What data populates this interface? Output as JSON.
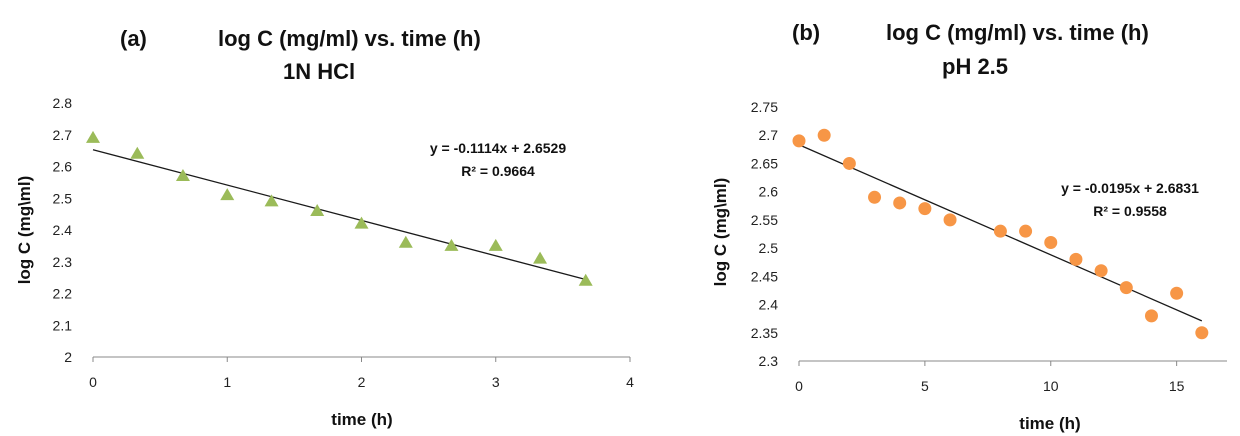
{
  "chart_data": [
    {
      "type": "scatter",
      "panel_label": "(a)",
      "title": "log C (mg/ml) vs. time (h)",
      "subtitle": "1N HCl",
      "xlabel": "time (h)",
      "ylabel": "log C (mg\\ml)",
      "xlim": [
        0,
        4
      ],
      "ylim": [
        2,
        2.8
      ],
      "xticks": [
        0,
        1,
        2,
        3,
        4
      ],
      "yticks": [
        2,
        2.1,
        2.2,
        2.3,
        2.4,
        2.5,
        2.6,
        2.7,
        2.8
      ],
      "marker": "triangle",
      "marker_color": "#9bbb59",
      "grid": false,
      "series": [
        {
          "x": [
            0,
            0.33,
            0.67,
            1.0,
            1.33,
            1.67,
            2.0,
            2.33,
            2.67,
            3.0,
            3.33,
            3.67
          ],
          "y": [
            2.69,
            2.64,
            2.57,
            2.51,
            2.49,
            2.46,
            2.42,
            2.36,
            2.35,
            2.35,
            2.31,
            2.24
          ]
        }
      ],
      "trendline": {
        "slope": -0.1114,
        "intercept": 2.6529,
        "x_range": [
          0,
          3.67
        ]
      },
      "annotation": {
        "equation": "y = -0.1114x + 2.6529",
        "r2": "R² = 0.9664"
      }
    },
    {
      "type": "scatter",
      "panel_label": "(b)",
      "title": "log C (mg/ml) vs. time (h)",
      "subtitle": "pH 2.5",
      "xlabel": "time (h)",
      "ylabel": "log C (mg\\ml)",
      "xlim": [
        0,
        17
      ],
      "ylim": [
        2.3,
        2.75
      ],
      "xticks": [
        0,
        5,
        10,
        15
      ],
      "yticks": [
        2.3,
        2.35,
        2.4,
        2.45,
        2.5,
        2.55,
        2.6,
        2.65,
        2.7,
        2.75
      ],
      "marker": "circle",
      "marker_color": "#f79646",
      "grid": false,
      "series": [
        {
          "x": [
            0,
            1,
            2,
            3,
            4,
            5,
            6,
            8,
            9,
            10,
            11,
            12,
            13,
            14,
            15,
            16
          ],
          "y": [
            2.69,
            2.7,
            2.65,
            2.59,
            2.58,
            2.57,
            2.55,
            2.53,
            2.53,
            2.51,
            2.48,
            2.46,
            2.43,
            2.38,
            2.42,
            2.35
          ]
        }
      ],
      "trendline": {
        "slope": -0.0195,
        "intercept": 2.6831,
        "x_range": [
          0,
          16
        ]
      },
      "annotation": {
        "equation": "y = -0.0195x + 2.6831",
        "r2": "R² = 0.9558"
      }
    }
  ]
}
